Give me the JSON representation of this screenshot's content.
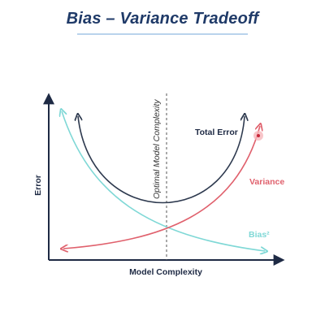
{
  "title": "Bias – Variance Tradeoff",
  "axes": {
    "xlabel": "Model Complexity",
    "ylabel": "Error"
  },
  "vertical_marker": {
    "label": "Optimal Model Complexity"
  },
  "curves": {
    "total_error": {
      "label": "Total Error",
      "color": "#2e3a4f"
    },
    "variance": {
      "label": "Variance",
      "color": "#e0616d"
    },
    "bias": {
      "label": "Bias²",
      "color": "#7fd8d6"
    }
  },
  "colors": {
    "title": "#1f3a68",
    "axis": "#1e2a44",
    "marker": "#555555"
  }
}
